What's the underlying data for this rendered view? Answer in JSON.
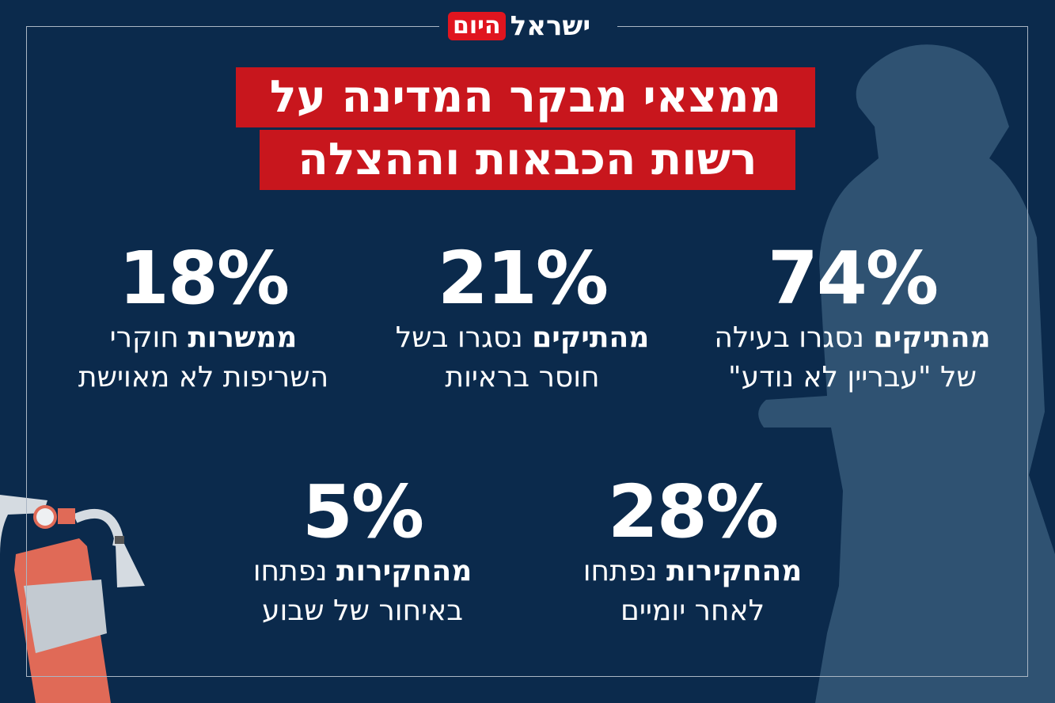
{
  "logo": {
    "main": "ישראל",
    "accent": "היום"
  },
  "title": {
    "line1": "ממצאי מבקר המדינה על",
    "line2": "רשות הכבאות וההצלה"
  },
  "stats": [
    {
      "value": "74%",
      "bold": "מהתיקים",
      "rest": " נסגרו בעילה",
      "line2": "של \"עבריין לא נודע\""
    },
    {
      "value": "21%",
      "bold": "מהתיקים",
      "rest": " נסגרו בשל",
      "line2": "חוסר בראיות"
    },
    {
      "value": "18%",
      "bold": "ממשרות",
      "rest": " חוקרי",
      "line2": "השריפות לא מאוישת"
    },
    {
      "value": "28%",
      "bold": "מהחקירות",
      "rest": " נפתחו",
      "line2": "לאחר יומיים"
    },
    {
      "value": "5%",
      "bold": "מהחקירות",
      "rest": " נפתחו",
      "line2": "באיחור של שבוע"
    }
  ],
  "colors": {
    "background": "#0b2a4c",
    "accent": "#c8161d",
    "silhouette": "#2f5272"
  }
}
